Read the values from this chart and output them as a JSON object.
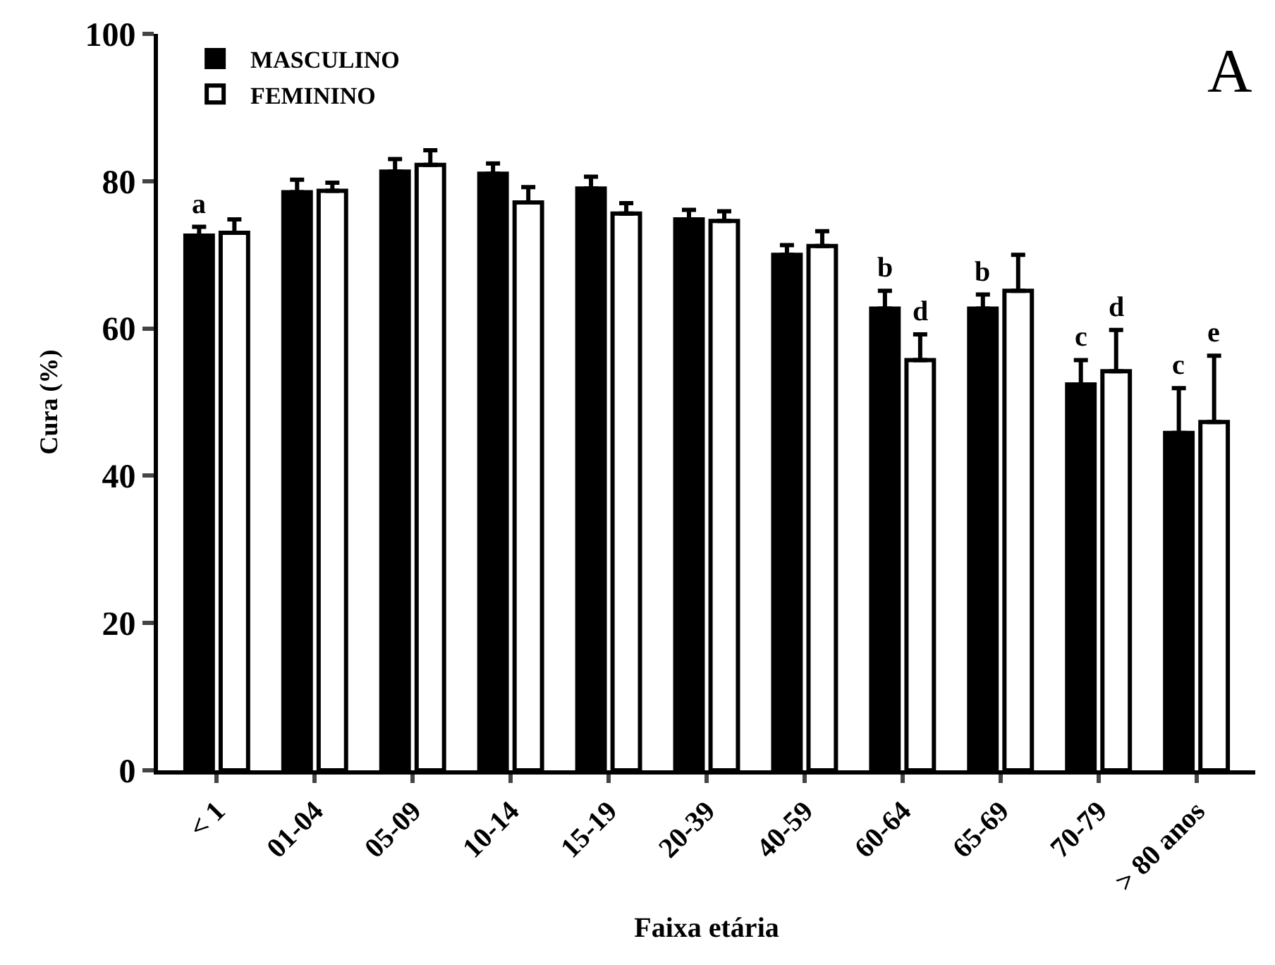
{
  "chart_data": {
    "type": "bar",
    "xlabel": "Faixa etária",
    "ylabel": "Cura (%)",
    "categories": [
      "< 1",
      "01-04",
      "05-09",
      "10-14",
      "15-19",
      "20-39",
      "40-59",
      "60-64",
      "65-69",
      "70-79",
      "> 80 anos"
    ],
    "series": [
      {
        "name": "MASCULINO",
        "color": "#000000",
        "values": [
          72.6,
          78.5,
          81.3,
          81.0,
          79.0,
          74.8,
          70.0,
          62.7,
          62.7,
          52.4,
          45.8
        ],
        "errors": [
          [
            72.6,
            73.8
          ],
          [
            78.5,
            80.2
          ],
          [
            81.3,
            83.0
          ],
          [
            81.0,
            82.4
          ],
          [
            79.0,
            80.6
          ],
          [
            74.8,
            76.1
          ],
          [
            70.0,
            71.3
          ],
          [
            62.7,
            65.1
          ],
          [
            62.7,
            64.6
          ],
          [
            52.4,
            55.7
          ],
          [
            45.8,
            51.9
          ]
        ]
      },
      {
        "name": "FEMININO",
        "color": "#ffffff",
        "values": [
          73.0,
          78.7,
          82.2,
          77.1,
          75.6,
          74.6,
          71.2,
          55.7,
          65.1,
          54.2,
          47.3
        ],
        "errors": [
          [
            73.0,
            74.8
          ],
          [
            78.7,
            79.8
          ],
          [
            82.2,
            84.2
          ],
          [
            77.1,
            79.2
          ],
          [
            75.6,
            77.0
          ],
          [
            74.6,
            75.9
          ],
          [
            71.2,
            73.2
          ],
          [
            55.7,
            59.2
          ],
          [
            65.1,
            70.0
          ],
          [
            54.2,
            59.8
          ],
          [
            47.3,
            56.3
          ]
        ]
      }
    ],
    "ylim": [
      0,
      100
    ],
    "yticks": [
      0,
      20,
      40,
      60,
      80,
      100
    ],
    "legend": "top left",
    "annotations": [
      "A",
      {
        "text": "a",
        "x": "< 1",
        "y": 72.6
      },
      {
        "text": "b",
        "x": "60-64",
        "y": 62.7
      },
      {
        "text": "d",
        "x": "60-64",
        "y": 55.7
      },
      {
        "text": "b",
        "x": "65-69",
        "y": 62.7
      },
      {
        "text": "c",
        "x": "70-79",
        "y": 52.4
      },
      {
        "text": "d",
        "x": "70-79",
        "y": 54.2
      },
      {
        "text": "c",
        "x": "> 80 anos",
        "y": 45.8
      },
      {
        "text": "e",
        "x": "> 80 anos",
        "y": 47.3
      }
    ]
  }
}
